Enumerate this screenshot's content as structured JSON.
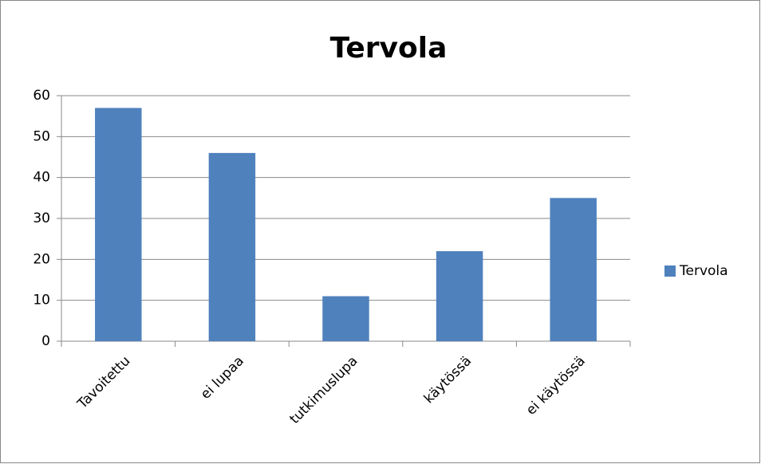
{
  "chart_data": {
    "type": "bar",
    "title": "Tervola",
    "categories": [
      "Tavoitettu",
      "ei lupaa",
      "tutkimuslupa",
      "käytössä",
      "ei käytössä"
    ],
    "series": [
      {
        "name": "Tervola",
        "color": "#4f81bd",
        "values": [
          57,
          46,
          11,
          22,
          35
        ]
      }
    ],
    "ylim": [
      0,
      60
    ],
    "yticks": [
      0,
      10,
      20,
      30,
      40,
      50,
      60
    ],
    "grid": true,
    "legend": "right"
  }
}
